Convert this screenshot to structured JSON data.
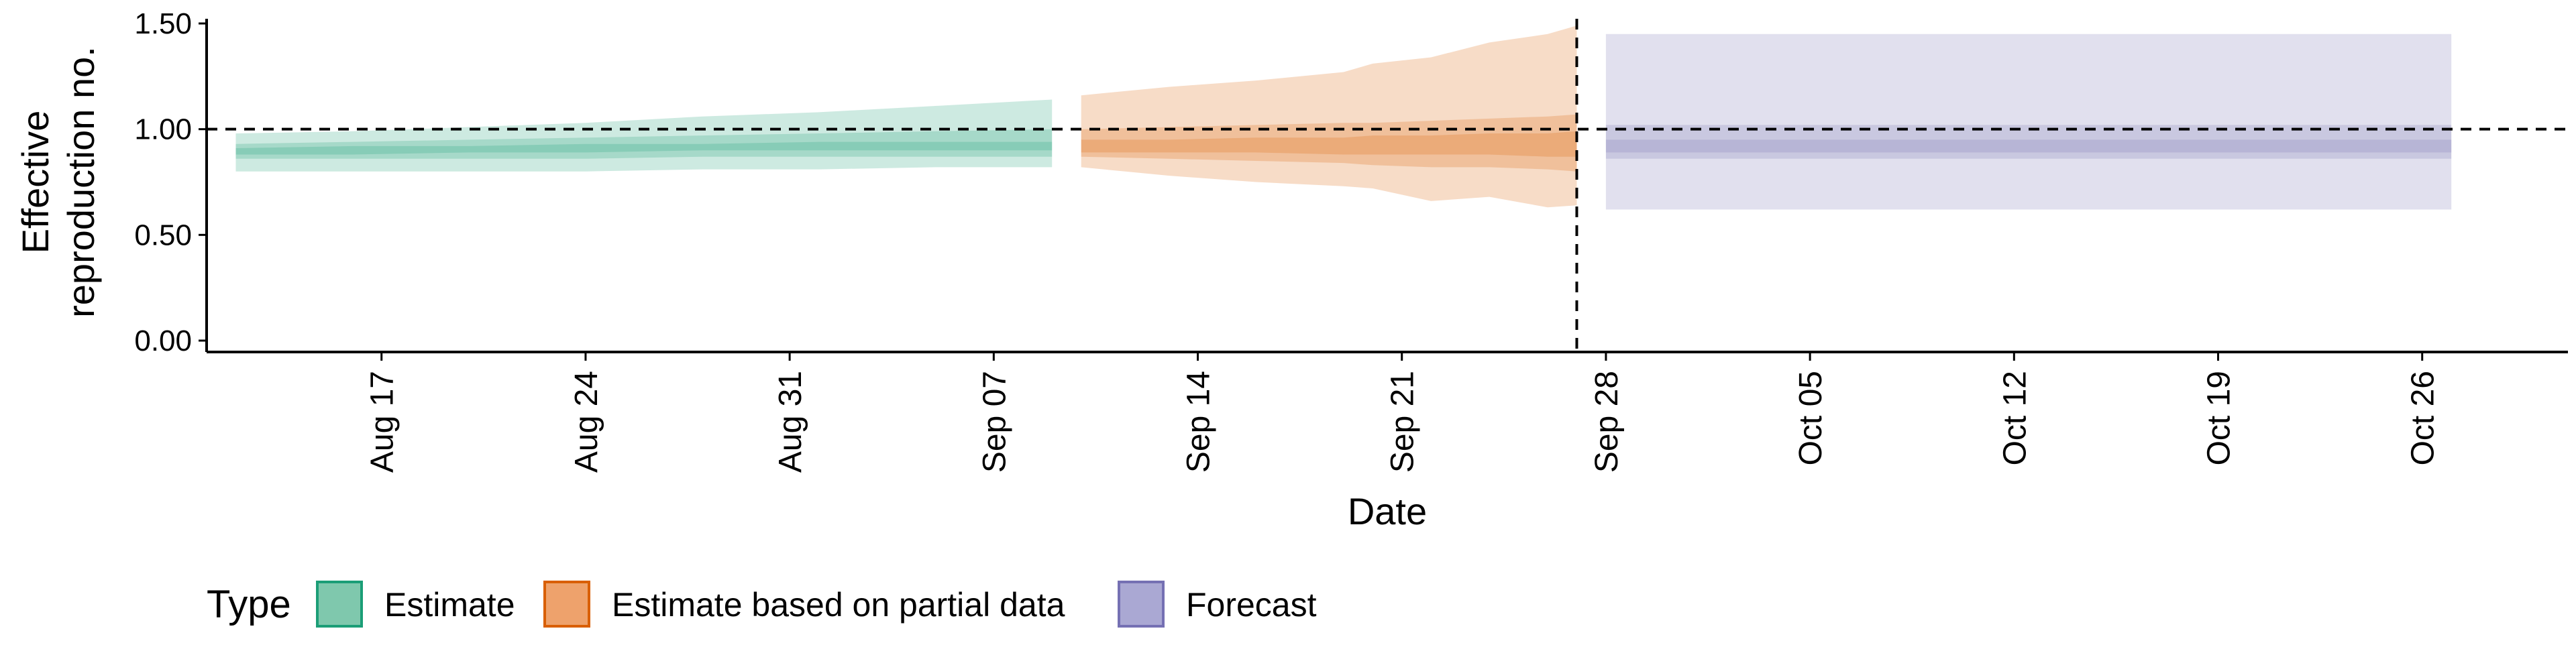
{
  "chart_data": {
    "type": "area",
    "xlabel": "Date",
    "ylabel": [
      "Effective",
      "reproduction no."
    ],
    "ylim": [
      0,
      1.5
    ],
    "yticks": [
      "0.00",
      "0.50",
      "1.00",
      "1.50"
    ],
    "xlim": [
      "2021-08-11",
      "2021-10-31"
    ],
    "xticks": [
      {
        "date": "2021-08-17",
        "label": "Aug 17"
      },
      {
        "date": "2021-08-24",
        "label": "Aug 24"
      },
      {
        "date": "2021-08-31",
        "label": "Aug 31"
      },
      {
        "date": "2021-09-07",
        "label": "Sep 07"
      },
      {
        "date": "2021-09-14",
        "label": "Sep 14"
      },
      {
        "date": "2021-09-21",
        "label": "Sep 21"
      },
      {
        "date": "2021-09-28",
        "label": "Sep 28"
      },
      {
        "date": "2021-10-05",
        "label": "Oct 05"
      },
      {
        "date": "2021-10-12",
        "label": "Oct 12"
      },
      {
        "date": "2021-10-19",
        "label": "Oct 19"
      },
      {
        "date": "2021-10-26",
        "label": "Oct 26"
      }
    ],
    "reference_line_y": 1.0,
    "forecast_start": "2021-09-27",
    "grid": false,
    "legend": {
      "title": "Type",
      "position": "bottom-left",
      "entries": [
        {
          "label": "Estimate",
          "fill": "#7fc8ad",
          "border": "#1b9e77"
        },
        {
          "label": "Estimate based on partial data",
          "fill": "#eea26c",
          "border": "#d95f02"
        },
        {
          "label": "Forecast",
          "fill": "#aaa8d3",
          "border": "#7570b3"
        }
      ]
    },
    "series": [
      {
        "name": "Estimate",
        "color": "#1b9e77",
        "x": [
          "2021-08-12",
          "2021-08-16",
          "2021-08-20",
          "2021-08-24",
          "2021-08-28",
          "2021-09-01",
          "2021-09-05",
          "2021-09-09"
        ],
        "lower_90": [
          0.8,
          0.8,
          0.8,
          0.8,
          0.81,
          0.81,
          0.82,
          0.82
        ],
        "upper_90": [
          0.98,
          0.99,
          1.01,
          1.03,
          1.06,
          1.08,
          1.11,
          1.14
        ],
        "lower_50": [
          0.86,
          0.86,
          0.86,
          0.86,
          0.87,
          0.87,
          0.87,
          0.87
        ],
        "upper_50": [
          0.93,
          0.94,
          0.95,
          0.96,
          0.97,
          0.98,
          0.99,
          1.0
        ],
        "lower_20": [
          0.88,
          0.88,
          0.89,
          0.89,
          0.9,
          0.9,
          0.9,
          0.9
        ],
        "upper_20": [
          0.91,
          0.92,
          0.92,
          0.93,
          0.93,
          0.94,
          0.94,
          0.94
        ]
      },
      {
        "name": "Estimate based on partial data",
        "color": "#d95f02",
        "x": [
          "2021-09-10",
          "2021-09-13",
          "2021-09-16",
          "2021-09-19",
          "2021-09-20",
          "2021-09-22",
          "2021-09-24",
          "2021-09-26",
          "2021-09-27"
        ],
        "lower_90": [
          0.82,
          0.78,
          0.75,
          0.73,
          0.72,
          0.66,
          0.68,
          0.63,
          0.64
        ],
        "upper_90": [
          1.16,
          1.2,
          1.23,
          1.27,
          1.31,
          1.34,
          1.41,
          1.45,
          1.49
        ],
        "lower_50": [
          0.87,
          0.86,
          0.85,
          0.84,
          0.83,
          0.82,
          0.82,
          0.81,
          0.8
        ],
        "upper_50": [
          1.0,
          1.01,
          1.02,
          1.03,
          1.03,
          1.04,
          1.05,
          1.06,
          1.07
        ],
        "lower_20": [
          0.89,
          0.89,
          0.89,
          0.88,
          0.88,
          0.88,
          0.88,
          0.87,
          0.87
        ],
        "upper_20": [
          0.95,
          0.95,
          0.96,
          0.96,
          0.97,
          0.97,
          0.98,
          0.98,
          0.99
        ]
      },
      {
        "name": "Forecast",
        "color": "#7570b3",
        "x": [
          "2021-09-28",
          "2021-10-27"
        ],
        "lower_90": [
          0.62,
          0.62
        ],
        "upper_90": [
          1.45,
          1.45
        ],
        "lower_50": [
          0.86,
          0.86
        ],
        "upper_50": [
          1.02,
          1.02
        ],
        "lower_20": [
          0.89,
          0.89
        ],
        "upper_20": [
          0.95,
          0.95
        ]
      }
    ]
  }
}
